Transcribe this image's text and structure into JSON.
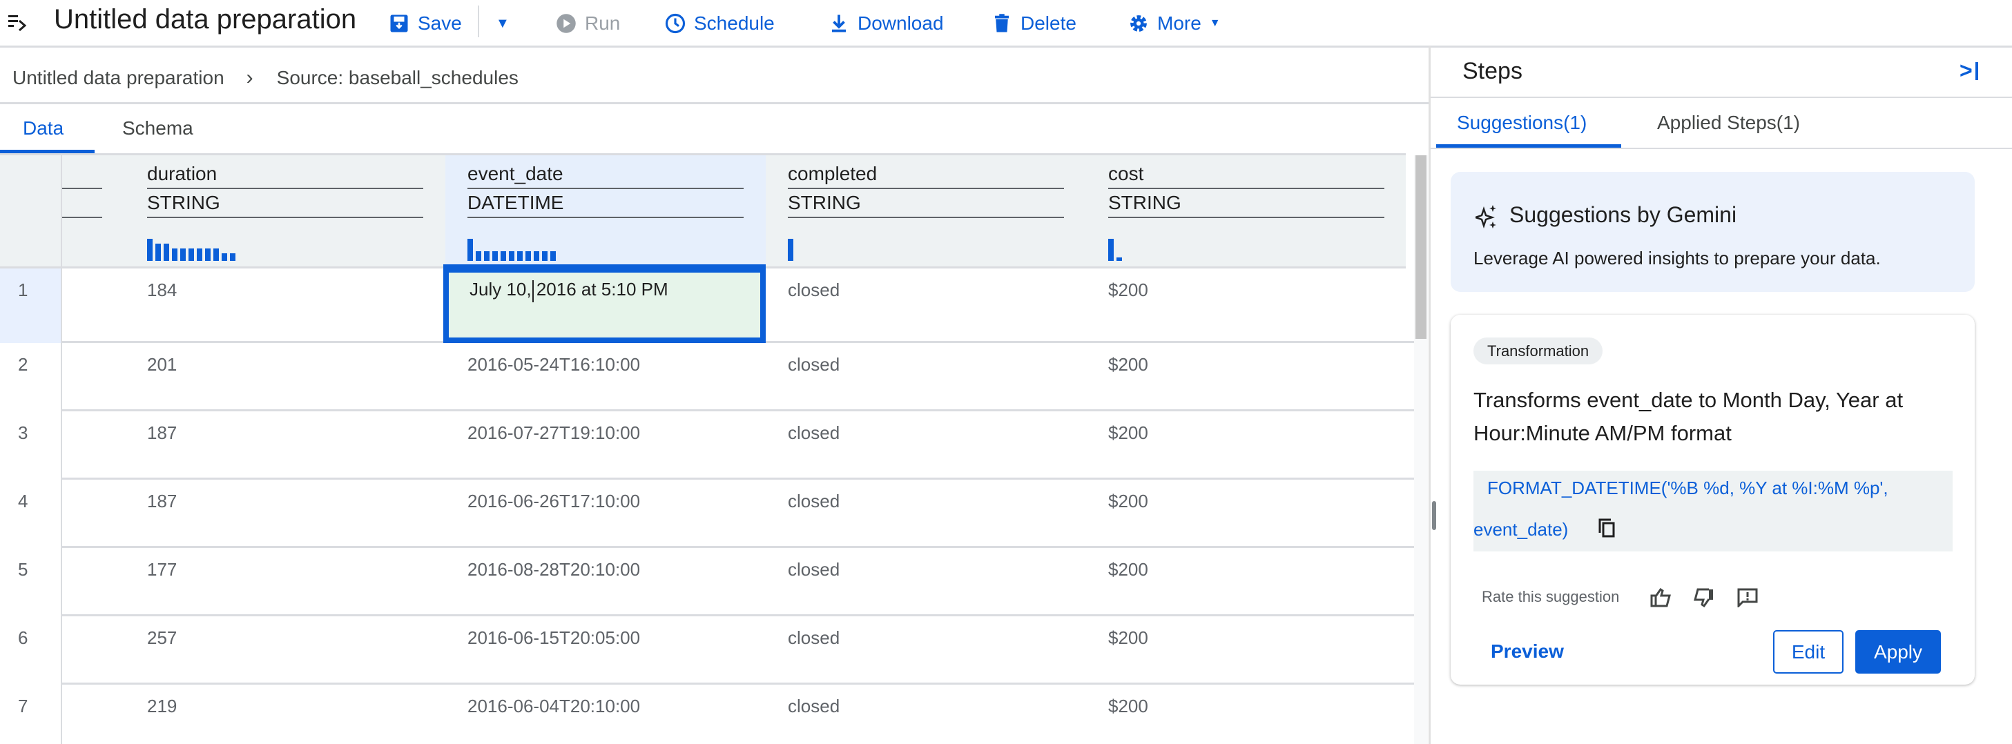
{
  "toolbar": {
    "title": "Untitled data preparation",
    "save": "Save",
    "run": "Run",
    "schedule": "Schedule",
    "download": "Download",
    "delete": "Delete",
    "more": "More"
  },
  "breadcrumb": {
    "root": "Untitled data preparation",
    "source": "Source: baseball_schedules"
  },
  "tabs": [
    {
      "label": "Data",
      "active": true
    },
    {
      "label": "Schema",
      "active": false
    }
  ],
  "columns": [
    {
      "name": "duration",
      "type": "STRING",
      "histogram": [
        1,
        0.78,
        0.78,
        0.56,
        0.56,
        0.56,
        0.56,
        0.56,
        0.56,
        0.34,
        0.34
      ]
    },
    {
      "name": "event_date",
      "type": "DATETIME",
      "histogram": [
        1,
        0.44,
        0.44,
        0.44,
        0.44,
        0.44,
        0.44,
        0.44,
        0.44,
        0.44,
        0.44
      ],
      "selected": true
    },
    {
      "name": "completed",
      "type": "STRING",
      "histogram": [
        1
      ]
    },
    {
      "name": "cost",
      "type": "STRING",
      "histogram": [
        1,
        0.15
      ]
    }
  ],
  "rows": [
    {
      "num": "1",
      "duration": "184",
      "event_date": "July 10, 2016 at 5:10 PM",
      "completed": "closed",
      "cost": "$200"
    },
    {
      "num": "2",
      "duration": "201",
      "event_date": "2016-05-24T16:10:00",
      "completed": "closed",
      "cost": "$200"
    },
    {
      "num": "3",
      "duration": "187",
      "event_date": "2016-07-27T19:10:00",
      "completed": "closed",
      "cost": "$200"
    },
    {
      "num": "4",
      "duration": "187",
      "event_date": "2016-06-26T17:10:00",
      "completed": "closed",
      "cost": "$200"
    },
    {
      "num": "5",
      "duration": "177",
      "event_date": "2016-08-28T20:10:00",
      "completed": "closed",
      "cost": "$200"
    },
    {
      "num": "6",
      "duration": "257",
      "event_date": "2016-06-15T20:05:00",
      "completed": "closed",
      "cost": "$200"
    },
    {
      "num": "7",
      "duration": "219",
      "event_date": "2016-06-04T20:10:00",
      "completed": "closed",
      "cost": "$200"
    }
  ],
  "panel": {
    "title": "Steps",
    "tabs": [
      {
        "label": "Suggestions(1)",
        "active": true
      },
      {
        "label": "Applied Steps(1)",
        "active": false
      }
    ],
    "gemini": {
      "title": "Suggestions by Gemini",
      "desc": "Leverage AI powered insights to prepare your data."
    },
    "card": {
      "chip": "Transformation",
      "desc": "Transforms event_date to Month Day, Year at Hour:Minute AM/PM format",
      "code_line1": "FORMAT_DATETIME('%B %d, %Y at %I:%M %p',",
      "code_line2": "event_date)",
      "rate": "Rate this suggestion",
      "preview": "Preview",
      "edit": "Edit",
      "apply": "Apply"
    }
  },
  "colors": {
    "accent": "#0b5fd8",
    "header_bg": "#eef2f3",
    "selected_col_bg": "#e6effc",
    "selected_cell_bg": "#e6f4ea",
    "gemini_bg": "#ecf2fc"
  }
}
